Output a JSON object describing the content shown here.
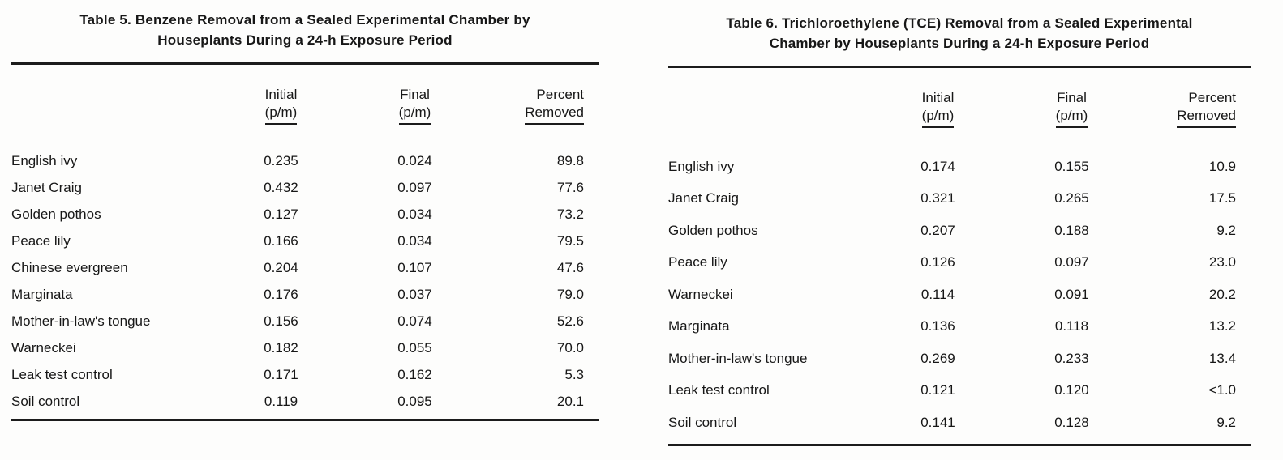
{
  "page": {
    "background": "#fdfdfc",
    "text_color": "#171717",
    "rule_color": "#1c1c1c"
  },
  "tables": [
    {
      "id": "table-5",
      "title_line1": "Table 5. Benzene Removal from a Sealed Experimental Chamber by",
      "title_line2": "Houseplants During a 24-h Exposure Period",
      "columns": {
        "initial_line1": "Initial",
        "initial_line2": "(p/m)",
        "final_line1": "Final",
        "final_line2": "(p/m)",
        "percent_line1": "Percent",
        "percent_line2": "Removed"
      },
      "rows": [
        {
          "plant": "English ivy",
          "initial": "0.235",
          "final": "0.024",
          "percent_removed": "89.8"
        },
        {
          "plant": "Janet Craig",
          "initial": "0.432",
          "final": "0.097",
          "percent_removed": "77.6"
        },
        {
          "plant": "Golden pothos",
          "initial": "0.127",
          "final": "0.034",
          "percent_removed": "73.2"
        },
        {
          "plant": "Peace lily",
          "initial": "0.166",
          "final": "0.034",
          "percent_removed": "79.5"
        },
        {
          "plant": "Chinese evergreen",
          "initial": "0.204",
          "final": "0.107",
          "percent_removed": "47.6"
        },
        {
          "plant": "Marginata",
          "initial": "0.176",
          "final": "0.037",
          "percent_removed": "79.0"
        },
        {
          "plant": "Mother-in-law's tongue",
          "initial": "0.156",
          "final": "0.074",
          "percent_removed": "52.6"
        },
        {
          "plant": "Warneckei",
          "initial": "0.182",
          "final": "0.055",
          "percent_removed": "70.0"
        },
        {
          "plant": "Leak test control",
          "initial": "0.171",
          "final": "0.162",
          "percent_removed": "5.3"
        },
        {
          "plant": "Soil control",
          "initial": "0.119",
          "final": "0.095",
          "percent_removed": "20.1"
        }
      ]
    },
    {
      "id": "table-6",
      "title_line1": "Table 6. Trichloroethylene (TCE) Removal from a Sealed Experimental",
      "title_line2": "Chamber by Houseplants During a 24-h Exposure Period",
      "columns": {
        "initial_line1": "Initial",
        "initial_line2": "(p/m)",
        "final_line1": "Final",
        "final_line2": "(p/m)",
        "percent_line1": "Percent",
        "percent_line2": "Removed"
      },
      "rows": [
        {
          "plant": "English ivy",
          "initial": "0.174",
          "final": "0.155",
          "percent_removed": "10.9"
        },
        {
          "plant": "Janet Craig",
          "initial": "0.321",
          "final": "0.265",
          "percent_removed": "17.5"
        },
        {
          "plant": "Golden pothos",
          "initial": "0.207",
          "final": "0.188",
          "percent_removed": "9.2"
        },
        {
          "plant": "Peace lily",
          "initial": "0.126",
          "final": "0.097",
          "percent_removed": "23.0"
        },
        {
          "plant": "Warneckei",
          "initial": "0.114",
          "final": "0.091",
          "percent_removed": "20.2"
        },
        {
          "plant": "Marginata",
          "initial": "0.136",
          "final": "0.118",
          "percent_removed": "13.2"
        },
        {
          "plant": "Mother-in-law's tongue",
          "initial": "0.269",
          "final": "0.233",
          "percent_removed": "13.4"
        },
        {
          "plant": "Leak test control",
          "initial": "0.121",
          "final": "0.120",
          "percent_removed": "<1.0"
        },
        {
          "plant": "Soil control",
          "initial": "0.141",
          "final": "0.128",
          "percent_removed": "9.2"
        }
      ]
    }
  ]
}
